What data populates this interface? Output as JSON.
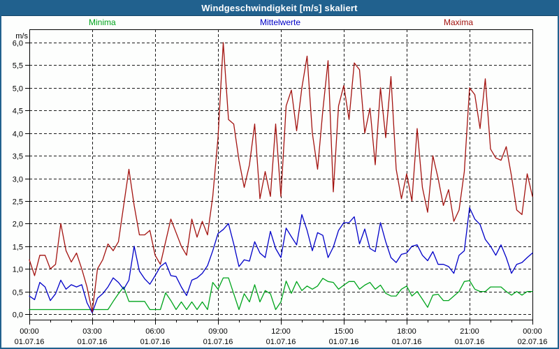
{
  "window": {
    "title": "Windgeschwindigkeit [m/s] skaliert"
  },
  "colors": {
    "titlebar": "#21618e",
    "frame": "#000000",
    "grid": "#1a1a1a",
    "minima": "#00a41c",
    "mittelwerte": "#0000c8",
    "maxima": "#a31310"
  },
  "chart_data": {
    "type": "line",
    "title": "Windgeschwindigkeit [m/s] skaliert",
    "ylabel": "m/s",
    "ylim": [
      0,
      6
    ],
    "y_tick_step": 0.5,
    "y_tick_labels": [
      "6,0",
      "5,5",
      "5,0",
      "4,5",
      "4,0",
      "3,5",
      "3,0",
      "2,5",
      "2,0",
      "1,5",
      "1,0",
      "0,5",
      "0,0"
    ],
    "x_hours_span": 24,
    "x_step_hours": 0.25,
    "x_ticks": [
      {
        "time": "00:00",
        "date": "01.07.16"
      },
      {
        "time": "03:00",
        "date": "01.07.16"
      },
      {
        "time": "06:00",
        "date": "01.07.16"
      },
      {
        "time": "09:00",
        "date": "01.07.16"
      },
      {
        "time": "12:00",
        "date": "01.07.16"
      },
      {
        "time": "15:00",
        "date": "01.07.16"
      },
      {
        "time": "18:00",
        "date": "01.07.16"
      },
      {
        "time": "21:00",
        "date": "01.07.16"
      },
      {
        "time": "00:00",
        "date": "02.07.16"
      }
    ],
    "grid": "dashed",
    "legend_position": "top",
    "series": [
      {
        "name": "Minima",
        "color": "#00a41c",
        "values": [
          0.1,
          0.1,
          0.1,
          0.1,
          0.1,
          0.1,
          0.1,
          0.1,
          0.1,
          0.1,
          0.1,
          0.1,
          0.1,
          0.1,
          0.1,
          0.1,
          0.28,
          0.45,
          0.6,
          0.28,
          0.28,
          0.28,
          0.28,
          0.1,
          0.1,
          0.1,
          0.47,
          0.3,
          0.1,
          0.27,
          0.1,
          0.27,
          0.1,
          0.27,
          0.1,
          0.7,
          0.55,
          0.8,
          0.8,
          0.45,
          0.1,
          0.45,
          0.27,
          0.65,
          0.27,
          0.52,
          0.45,
          0.1,
          0.27,
          0.73,
          0.46,
          0.72,
          0.52,
          0.62,
          0.55,
          0.62,
          0.79,
          0.72,
          0.7,
          0.55,
          0.64,
          0.72,
          0.72,
          0.55,
          0.64,
          0.7,
          0.55,
          0.64,
          0.46,
          0.4,
          0.4,
          0.55,
          0.62,
          0.4,
          0.5,
          0.33,
          0.15,
          0.42,
          0.44,
          0.3,
          0.3,
          0.4,
          0.5,
          0.72,
          0.74,
          0.55,
          0.5,
          0.5,
          0.6,
          0.6,
          0.6,
          0.5,
          0.42,
          0.5,
          0.42,
          0.5,
          0.5
        ]
      },
      {
        "name": "Mittelwerte",
        "color": "#0000c8",
        "values": [
          0.4,
          0.32,
          0.7,
          0.6,
          0.3,
          0.45,
          0.75,
          0.55,
          0.65,
          0.6,
          0.65,
          0.25,
          0.03,
          0.35,
          0.45,
          0.6,
          0.8,
          0.7,
          0.55,
          0.75,
          1.5,
          0.95,
          0.78,
          0.66,
          0.85,
          1.05,
          1.14,
          0.85,
          0.83,
          0.6,
          0.41,
          0.75,
          0.8,
          0.9,
          1.07,
          1.4,
          1.78,
          1.87,
          2.0,
          1.55,
          1.05,
          1.2,
          1.17,
          1.6,
          1.35,
          1.25,
          1.83,
          1.45,
          1.25,
          1.9,
          1.71,
          1.53,
          2.2,
          1.85,
          1.4,
          1.8,
          1.74,
          1.25,
          1.48,
          1.85,
          2.02,
          2.02,
          2.15,
          1.55,
          1.88,
          1.45,
          1.38,
          2.02,
          1.6,
          1.25,
          1.14,
          1.32,
          1.35,
          1.5,
          1.53,
          1.3,
          1.18,
          1.38,
          1.1,
          1.1,
          1.05,
          0.9,
          1.3,
          1.4,
          2.35,
          2.1,
          1.98,
          1.65,
          1.5,
          1.3,
          1.53,
          1.25,
          0.9,
          1.1,
          1.14,
          1.25,
          1.35
        ]
      },
      {
        "name": "Maxima",
        "color": "#a31310",
        "values": [
          1.2,
          0.85,
          1.3,
          1.3,
          1.0,
          1.1,
          2.0,
          1.4,
          1.15,
          1.35,
          1.0,
          0.6,
          0.05,
          1.0,
          1.2,
          1.55,
          1.4,
          1.6,
          2.4,
          3.2,
          2.4,
          1.75,
          1.75,
          1.85,
          1.3,
          1.1,
          1.6,
          2.1,
          1.8,
          1.5,
          1.3,
          2.1,
          1.7,
          2.05,
          1.75,
          2.6,
          3.9,
          6.0,
          4.3,
          4.2,
          3.4,
          2.8,
          3.3,
          4.2,
          2.55,
          3.15,
          2.6,
          4.2,
          2.6,
          4.6,
          4.95,
          4.05,
          5.0,
          5.7,
          4.0,
          3.2,
          4.5,
          5.6,
          2.7,
          4.6,
          5.05,
          4.3,
          5.55,
          5.4,
          4.0,
          4.55,
          3.3,
          5.0,
          3.9,
          5.25,
          3.2,
          2.55,
          3.1,
          2.5,
          4.1,
          2.8,
          2.25,
          3.5,
          3.0,
          2.4,
          2.75,
          2.05,
          2.3,
          3.15,
          5.0,
          4.85,
          4.1,
          5.2,
          3.65,
          3.45,
          3.4,
          3.7,
          3.05,
          2.3,
          2.2,
          3.1,
          2.6
        ]
      }
    ]
  }
}
